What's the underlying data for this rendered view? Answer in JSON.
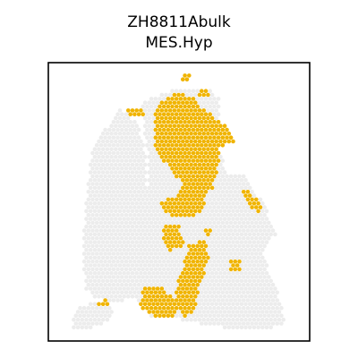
{
  "chart_data": {
    "type": "scatter",
    "title": "ZH8811Abulk",
    "subtitle": "MES.Hyp",
    "xlabel": "",
    "ylabel": "",
    "grid": false,
    "legend": "none",
    "colors": {
      "background_spots": "#ececec",
      "highlight_spots": "#f0b400",
      "frame": "#000000"
    },
    "series": [
      {
        "name": "",
        "role": "tissue",
        "description_regions": [
          {
            "poly": [
              [
                0.16,
                0.3
              ],
              [
                0.22,
                0.22
              ],
              [
                0.27,
                0.15
              ],
              [
                0.34,
                0.22
              ],
              [
                0.37,
                0.33
              ],
              [
                0.38,
                0.55
              ],
              [
                0.37,
                0.82
              ],
              [
                0.3,
                0.86
              ],
              [
                0.24,
                0.87
              ],
              [
                0.18,
                0.86
              ],
              [
                0.13,
                0.82
              ],
              [
                0.12,
                0.65
              ],
              [
                0.14,
                0.45
              ]
            ]
          },
          {
            "poly": [
              [
                0.35,
                0.14
              ],
              [
                0.43,
                0.1
              ],
              [
                0.52,
                0.08
              ],
              [
                0.62,
                0.08
              ],
              [
                0.66,
                0.12
              ],
              [
                0.66,
                0.3
              ],
              [
                0.69,
                0.42
              ],
              [
                0.72,
                0.52
              ],
              [
                0.76,
                0.58
              ],
              [
                0.83,
                0.68
              ],
              [
                0.86,
                0.78
              ],
              [
                0.9,
                0.86
              ],
              [
                0.92,
                0.96
              ],
              [
                0.78,
                0.97
              ],
              [
                0.62,
                0.96
              ],
              [
                0.55,
                0.94
              ],
              [
                0.38,
                0.92
              ],
              [
                0.33,
                0.86
              ],
              [
                0.37,
                0.6
              ],
              [
                0.38,
                0.35
              ]
            ]
          },
          {
            "poly": [
              [
                0.6,
                0.4
              ],
              [
                0.76,
                0.4
              ],
              [
                0.84,
                0.52
              ],
              [
                0.88,
                0.62
              ],
              [
                0.83,
                0.68
              ],
              [
                0.75,
                0.6
              ],
              [
                0.62,
                0.52
              ]
            ]
          },
          {
            "poly": [
              [
                0.08,
                0.93
              ],
              [
                0.12,
                0.88
              ],
              [
                0.22,
                0.87
              ],
              [
                0.25,
                0.9
              ],
              [
                0.2,
                0.96
              ],
              [
                0.08,
                0.97
              ]
            ]
          }
        ]
      },
      {
        "name": "",
        "role": "highlighted",
        "description_regions": [
          {
            "poly": [
              [
                0.4,
                0.16
              ],
              [
                0.46,
                0.11
              ],
              [
                0.5,
                0.09
              ],
              [
                0.56,
                0.12
              ],
              [
                0.6,
                0.16
              ],
              [
                0.68,
                0.22
              ],
              [
                0.72,
                0.28
              ],
              [
                0.66,
                0.3
              ],
              [
                0.66,
                0.36
              ],
              [
                0.63,
                0.46
              ],
              [
                0.56,
                0.48
              ],
              [
                0.53,
                0.46
              ],
              [
                0.47,
                0.38
              ],
              [
                0.41,
                0.32
              ],
              [
                0.4,
                0.24
              ]
            ]
          },
          {
            "poly": [
              [
                0.52,
                0.44
              ],
              [
                0.6,
                0.44
              ],
              [
                0.6,
                0.52
              ],
              [
                0.56,
                0.56
              ],
              [
                0.5,
                0.56
              ],
              [
                0.44,
                0.54
              ],
              [
                0.42,
                0.5
              ],
              [
                0.48,
                0.48
              ]
            ]
          },
          {
            "poly": [
              [
                0.44,
                0.58
              ],
              [
                0.5,
                0.58
              ],
              [
                0.52,
                0.66
              ],
              [
                0.46,
                0.68
              ],
              [
                0.43,
                0.64
              ]
            ]
          },
          {
            "poly": [
              [
                0.54,
                0.66
              ],
              [
                0.6,
                0.64
              ],
              [
                0.62,
                0.72
              ],
              [
                0.58,
                0.8
              ],
              [
                0.56,
                0.9
              ],
              [
                0.52,
                0.93
              ],
              [
                0.48,
                0.88
              ],
              [
                0.5,
                0.78
              ]
            ]
          },
          {
            "poly": [
              [
                0.36,
                0.82
              ],
              [
                0.44,
                0.82
              ],
              [
                0.5,
                0.88
              ],
              [
                0.48,
                0.93
              ],
              [
                0.4,
                0.92
              ],
              [
                0.34,
                0.89
              ]
            ]
          },
          {
            "poly": [
              [
                0.75,
                0.45
              ],
              [
                0.8,
                0.48
              ],
              [
                0.83,
                0.52
              ],
              [
                0.81,
                0.54
              ],
              [
                0.76,
                0.5
              ]
            ]
          },
          {
            "poly": [
              [
                0.7,
                0.72
              ],
              [
                0.74,
                0.72
              ],
              [
                0.74,
                0.75
              ],
              [
                0.7,
                0.75
              ]
            ]
          },
          {
            "poly": [
              [
                0.18,
                0.87
              ],
              [
                0.22,
                0.86
              ],
              [
                0.22,
                0.89
              ],
              [
                0.18,
                0.89
              ]
            ]
          },
          {
            "poly": [
              [
                0.51,
                0.03
              ],
              [
                0.54,
                0.03
              ],
              [
                0.54,
                0.06
              ],
              [
                0.51,
                0.06
              ]
            ]
          },
          {
            "poly": [
              [
                0.58,
                0.09
              ],
              [
                0.62,
                0.09
              ],
              [
                0.62,
                0.12
              ],
              [
                0.58,
                0.12
              ]
            ]
          },
          {
            "poly": [
              [
                0.3,
                0.16
              ],
              [
                0.36,
                0.16
              ],
              [
                0.36,
                0.19
              ],
              [
                0.3,
                0.19
              ]
            ]
          },
          {
            "poly": [
              [
                0.6,
                0.6
              ],
              [
                0.63,
                0.6
              ],
              [
                0.63,
                0.63
              ],
              [
                0.6,
                0.63
              ]
            ]
          }
        ]
      }
    ],
    "xlim": [
      0,
      1
    ],
    "ylim": [
      0,
      1
    ]
  }
}
